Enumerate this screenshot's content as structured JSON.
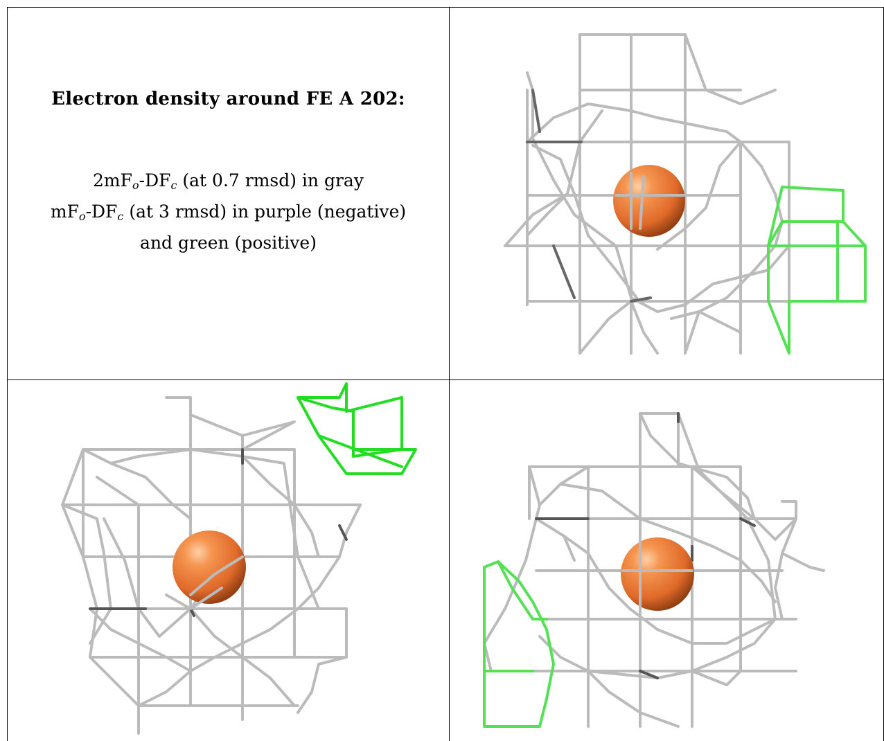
{
  "caption": {
    "title": "Electron density around FE A 202:",
    "line1_pre": "2mF",
    "line1_sub1": "o",
    "line1_mid": "-DF",
    "line1_sub2": "c",
    "line1_post": " (at 0.7 rmsd) in gray",
    "line2_pre": "mF",
    "line2_sub1": "o",
    "line2_mid": "-DF",
    "line2_sub2": "c",
    "line2_post": " (at 3 rmsd) in purple (negative)",
    "line3": "and green (positive)"
  },
  "colors": {
    "density_2fofc": "#b9b9b9",
    "density_2fofc_dark": "#606060",
    "density_positive": "#33dd33",
    "atom_fe": "#e8702f"
  },
  "panels": [
    {
      "name": "view-1",
      "atom": "FE A 202"
    },
    {
      "name": "view-2",
      "atom": "FE A 202"
    },
    {
      "name": "view-3",
      "atom": "FE A 202"
    }
  ]
}
